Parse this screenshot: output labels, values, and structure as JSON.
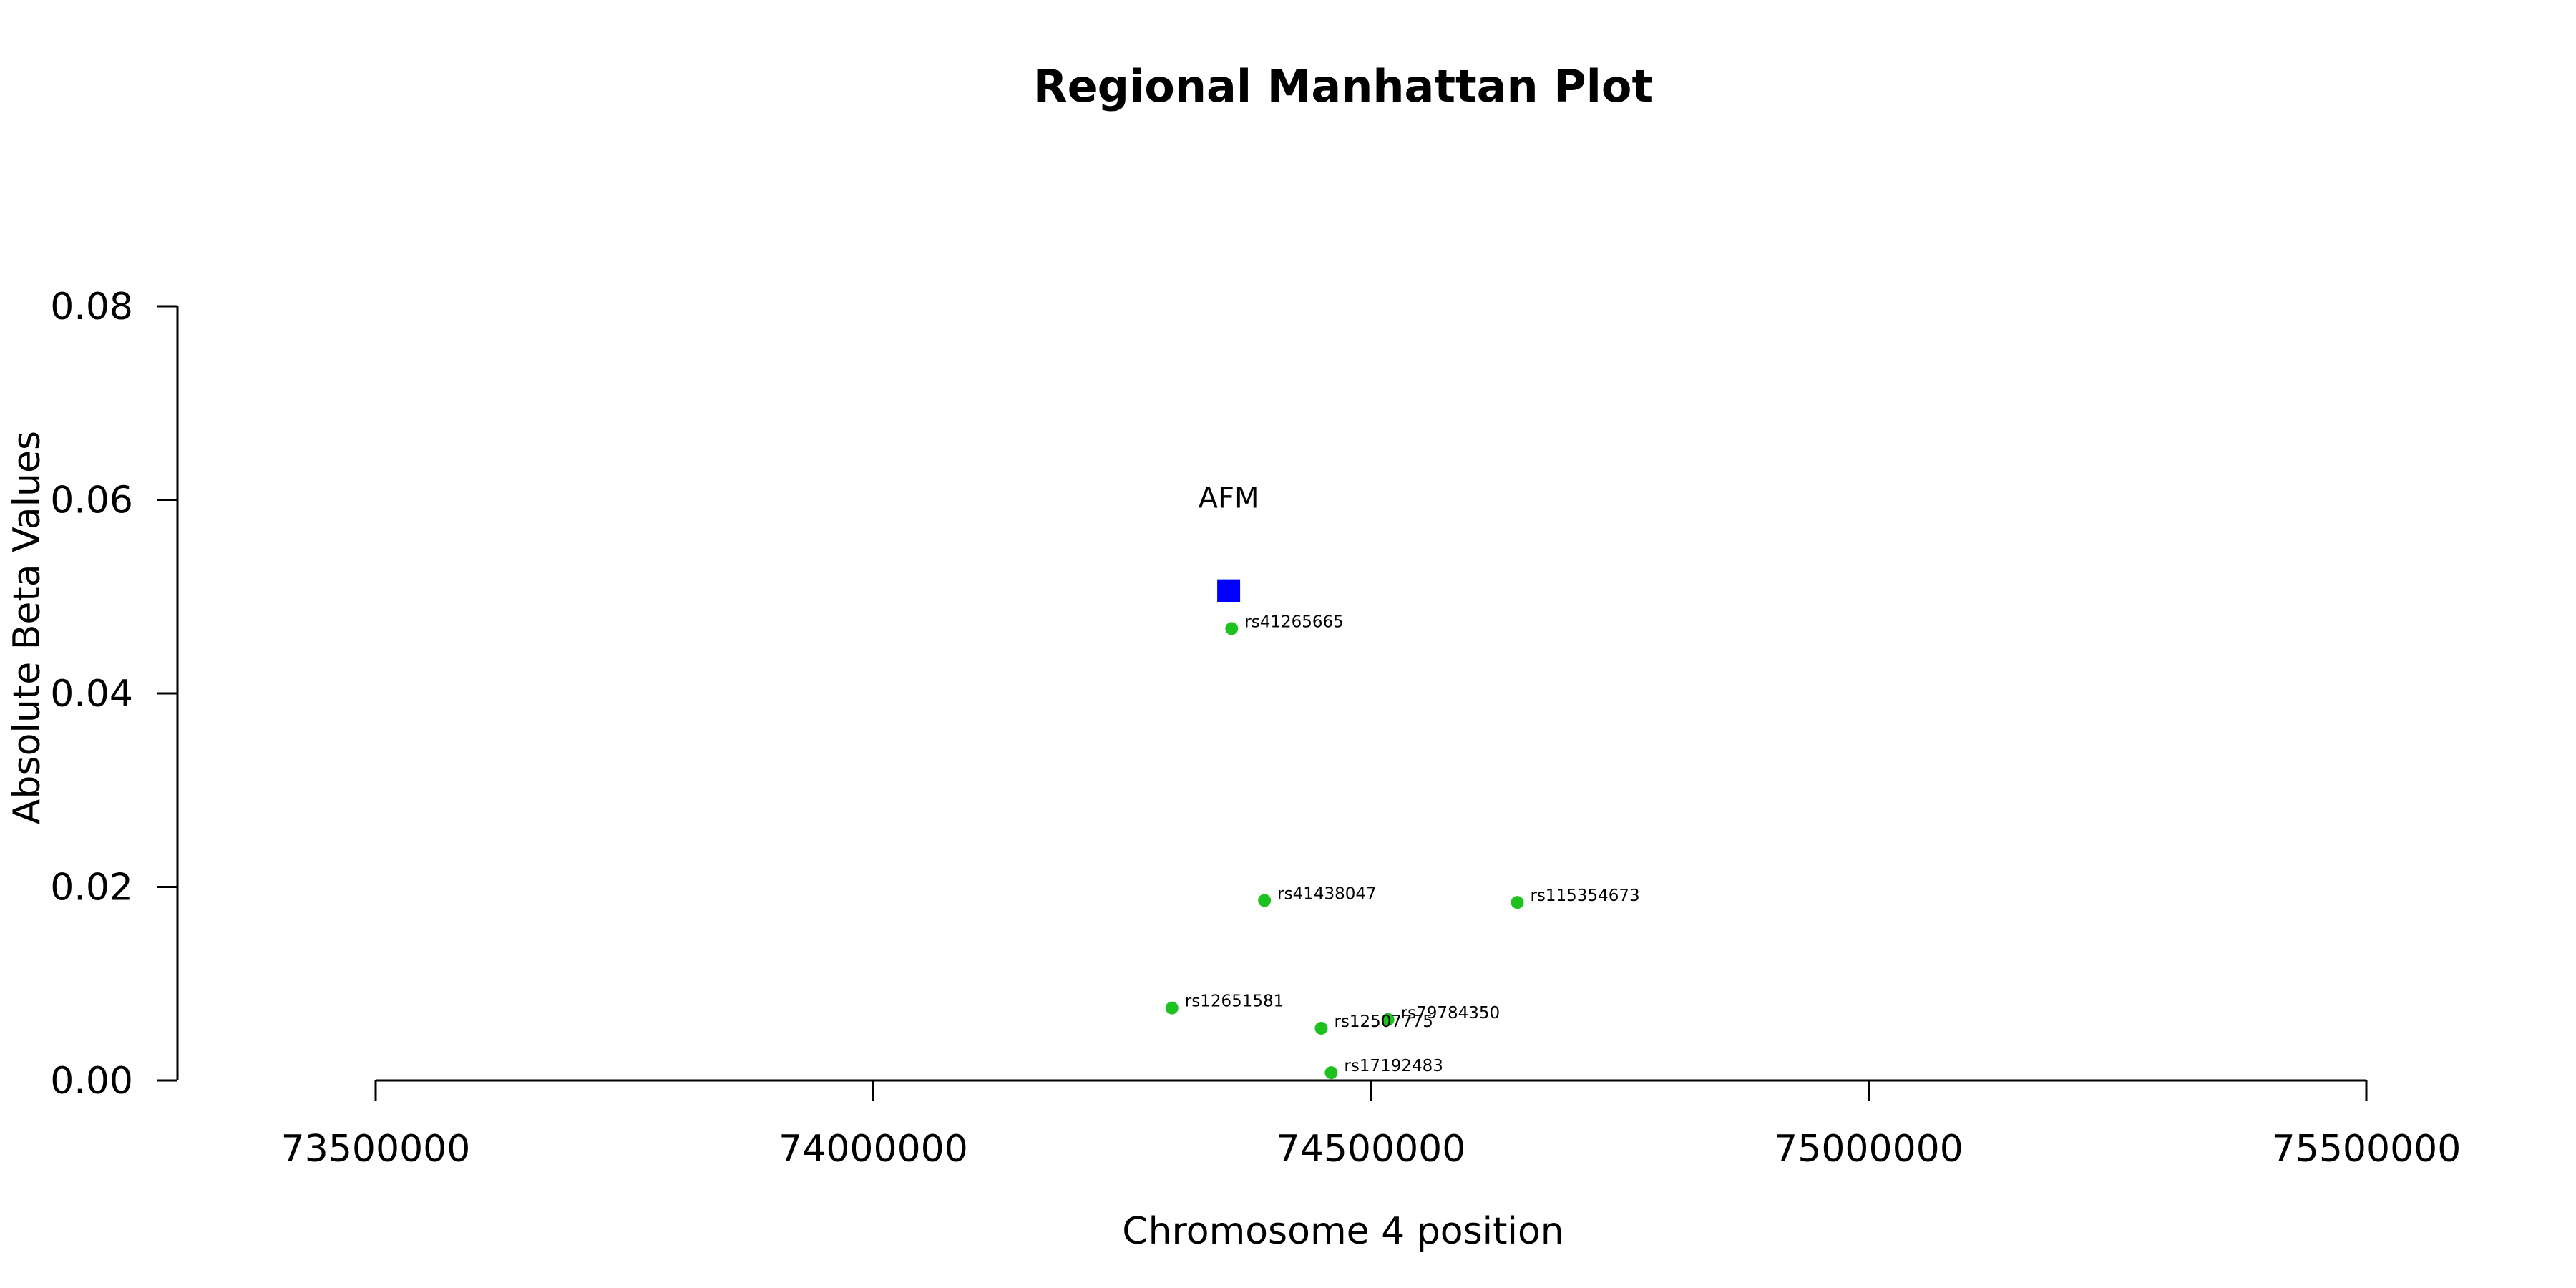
{
  "chart_data": {
    "type": "scatter",
    "title": "Regional Manhattan Plot",
    "xlabel": "Chromosome 4 position",
    "ylabel": "Absolute Beta Values",
    "xlim": [
      73300000,
      75600000
    ],
    "ylim": [
      0,
      0.08
    ],
    "xticks": [
      73500000,
      74000000,
      74500000,
      75000000,
      75500000
    ],
    "xtick_labels": [
      "73500000",
      "74000000",
      "74500000",
      "75000000",
      "75500000"
    ],
    "yticks": [
      0,
      0.02,
      0.04,
      0.06,
      0.08
    ],
    "ytick_labels": [
      "0.00",
      "0.02",
      "0.04",
      "0.06",
      "0.08"
    ],
    "grid": false,
    "colors": {
      "snp": "#1ec21e",
      "gene": "#0000ff"
    },
    "gene": {
      "label": "AFM",
      "x": 74357000,
      "y": 0.0506
    },
    "snps": [
      {
        "label": "rs41265665",
        "x": 74360000,
        "y": 0.0467
      },
      {
        "label": "rs41438047",
        "x": 74393000,
        "y": 0.0186
      },
      {
        "label": "rs115354673",
        "x": 74647000,
        "y": 0.0184
      },
      {
        "label": "rs12651581",
        "x": 74300000,
        "y": 0.0075
      },
      {
        "label": "rs79784350",
        "x": 74517000,
        "y": 0.0063
      },
      {
        "label": "rs12507775",
        "x": 74450000,
        "y": 0.0054
      },
      {
        "label": "rs17192483",
        "x": 74460000,
        "y": 0.0008
      }
    ]
  }
}
